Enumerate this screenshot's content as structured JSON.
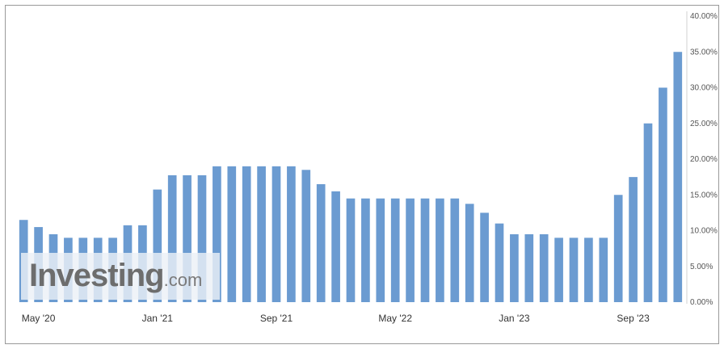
{
  "chart_data": {
    "type": "bar",
    "title": "",
    "xlabel": "",
    "ylabel": "",
    "ylim": [
      0,
      40
    ],
    "y_ticks": [
      "0.00%",
      "5.00%",
      "10.00%",
      "15.00%",
      "20.00%",
      "25.00%",
      "30.00%",
      "35.00%",
      "40.00%"
    ],
    "y_tick_values": [
      0,
      5,
      10,
      15,
      20,
      25,
      30,
      35,
      40
    ],
    "y_axis_position": "right",
    "x_tick_labels": [
      "May '20",
      "Jan '21",
      "Sep '21",
      "May '22",
      "Jan '23",
      "Sep '23"
    ],
    "x_tick_bar_index": [
      1,
      9,
      17,
      25,
      33,
      41
    ],
    "grid": false,
    "series": [
      {
        "color": "#6b9bd1",
        "values": [
          11.5,
          10.5,
          9.5,
          9.0,
          9.0,
          9.0,
          9.0,
          10.75,
          10.75,
          15.75,
          17.75,
          17.75,
          17.75,
          19.0,
          19.0,
          19.0,
          19.0,
          19.0,
          19.0,
          18.5,
          16.5,
          15.5,
          14.5,
          14.5,
          14.5,
          14.5,
          14.5,
          14.5,
          14.5,
          14.5,
          13.75,
          12.5,
          11.0,
          9.5,
          9.5,
          9.5,
          9.0,
          9.0,
          9.0,
          9.0,
          15.0,
          17.5,
          25.0,
          30.0,
          35.0
        ]
      }
    ]
  },
  "watermark": {
    "brand": "Investing",
    "suffix": ".com"
  }
}
